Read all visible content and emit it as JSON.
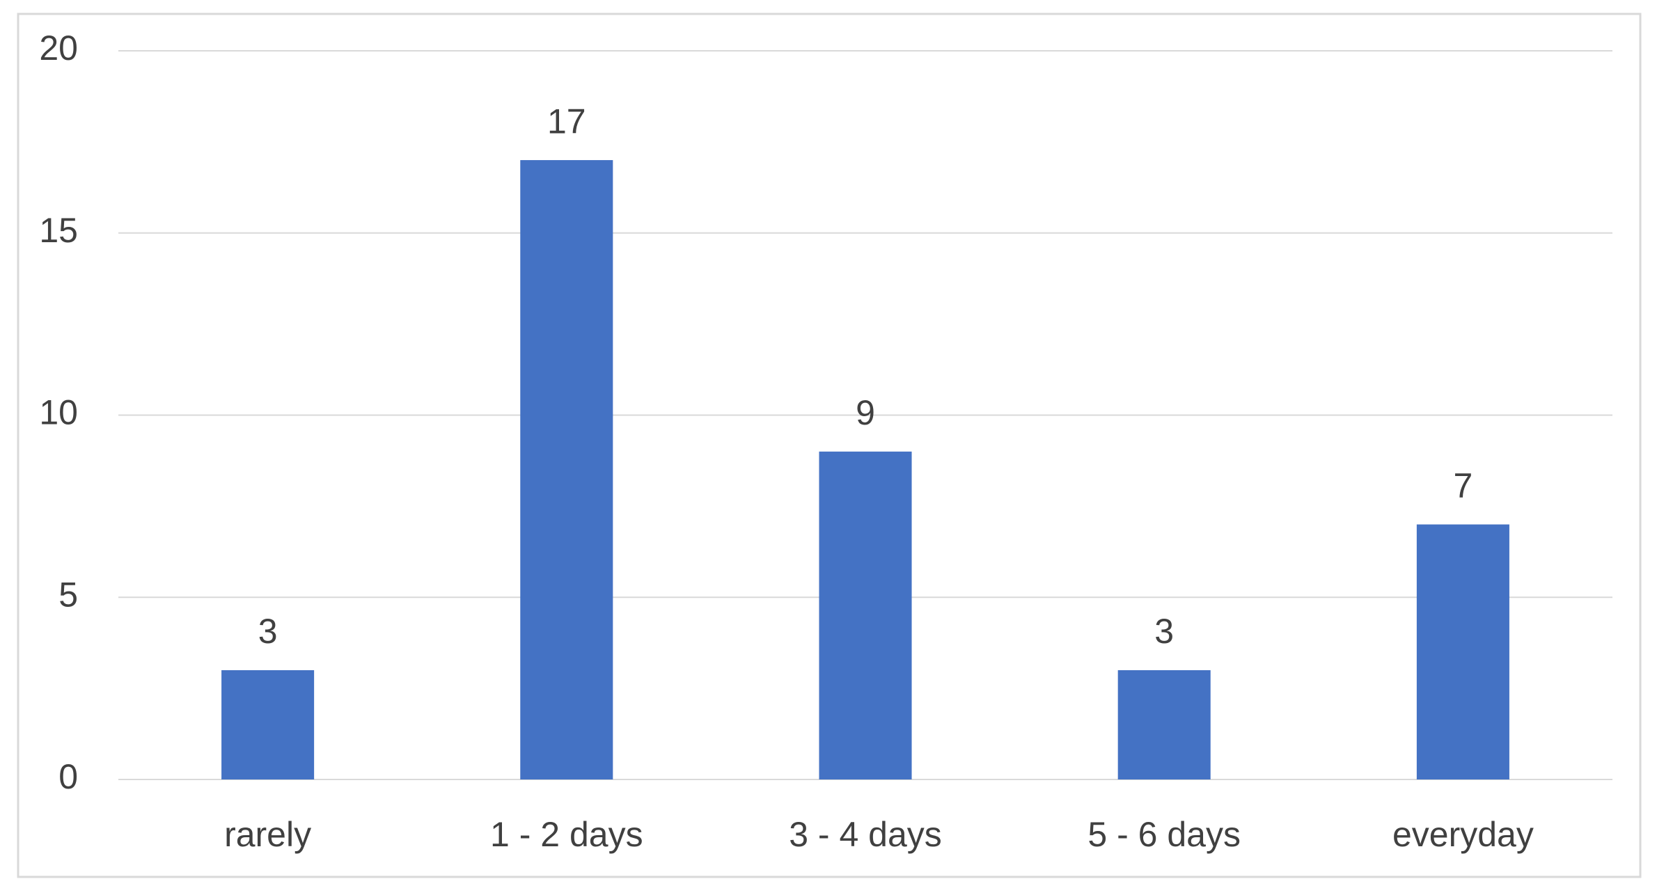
{
  "chart_data": {
    "type": "bar",
    "categories": [
      "rarely",
      "1 - 2 days",
      "3 - 4 days",
      "5 - 6 days",
      "everyday"
    ],
    "values": [
      3,
      17,
      9,
      3,
      7
    ],
    "color": "#4472c4",
    "ylim": [
      0,
      20
    ],
    "yticks": [
      0,
      5,
      10,
      15,
      20
    ],
    "grid": true,
    "data_labels": true
  }
}
